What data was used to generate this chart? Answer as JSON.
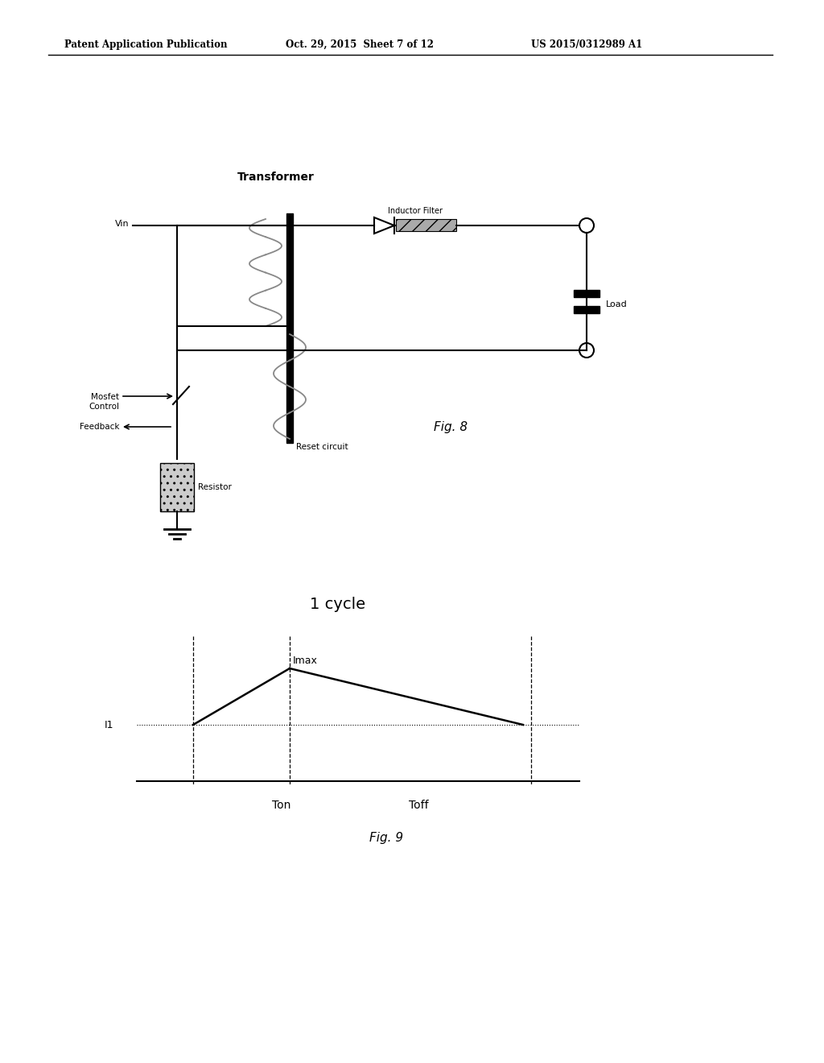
{
  "bg_color": "#ffffff",
  "header_left": "Patent Application Publication",
  "header_center": "Oct. 29, 2015  Sheet 7 of 12",
  "header_right": "US 2015/0312989 A1",
  "fig8_label": "Fig. 8",
  "fig9_label": "Fig. 9",
  "cycle_label": "1 cycle",
  "imax_label": "Imax",
  "i1_label": "I1",
  "ton_label": "Ton",
  "toff_label": "Toff",
  "transformer_label": "Transformer",
  "inductor_label": "Inductor Filter",
  "reset_label": "Reset circuit",
  "mosfet_label": "Mosfet\nControl",
  "feedback_label": "Feedback",
  "resistor_label": "Resistor",
  "load_label": "Load",
  "vin_label": "Vin"
}
